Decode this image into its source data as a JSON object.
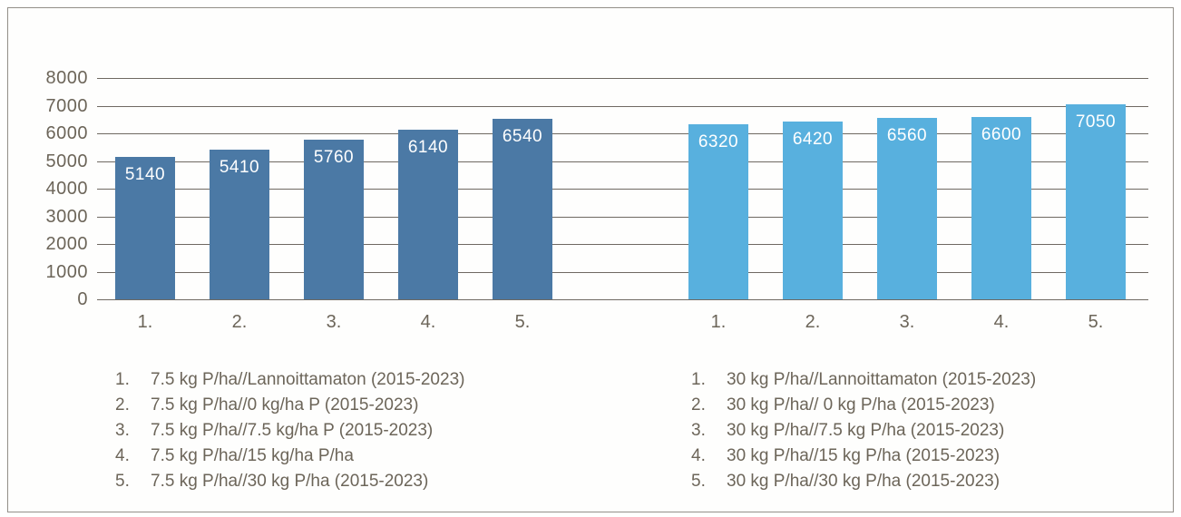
{
  "chart_data": {
    "type": "bar",
    "title": "",
    "xlabel": "",
    "ylabel": "",
    "ylim": [
      0,
      8000
    ],
    "yticks": [
      8000,
      7000,
      6000,
      5000,
      4000,
      3000,
      2000,
      1000,
      0
    ],
    "grid": "horizontal",
    "legend_position": "bottom",
    "groups": [
      {
        "name": "7.5 kg P/ha series",
        "color": "#4b79a5",
        "categories": [
          "1.",
          "2.",
          "3.",
          "4.",
          "5."
        ],
        "values": [
          5140,
          5410,
          5760,
          6140,
          6540
        ]
      },
      {
        "name": "30 kg P/ha series",
        "color": "#58b0de",
        "categories": [
          "1.",
          "2.",
          "3.",
          "4.",
          "5."
        ],
        "values": [
          6320,
          6420,
          6560,
          6600,
          7050
        ]
      }
    ],
    "legend_left": [
      {
        "num": "1.",
        "label": "7.5 kg P/ha//Lannoittamaton (2015-2023)"
      },
      {
        "num": "2.",
        "label": "7.5 kg P/ha//0 kg/ha P (2015-2023)"
      },
      {
        "num": "3.",
        "label": "7.5 kg P/ha//7.5 kg/ha P (2015-2023)"
      },
      {
        "num": "4.",
        "label": "7.5 kg P/ha//15 kg/ha P/ha"
      },
      {
        "num": "5.",
        "label": "7.5 kg P/ha//30 kg P/ha (2015-2023)"
      }
    ],
    "legend_right": [
      {
        "num": "1.",
        "label": "30 kg P/ha//Lannoittamaton (2015-2023)"
      },
      {
        "num": "2.",
        "label": "30 kg P/ha// 0 kg P/ha (2015-2023)"
      },
      {
        "num": "3.",
        "label": "30 kg P/ha//7.5 kg P/ha (2015-2023)"
      },
      {
        "num": "4.",
        "label": "30 kg P/ha//15 kg P/ha (2015-2023)"
      },
      {
        "num": "5.",
        "label": "30 kg P/ha//30 kg P/ha (2015-2023)"
      }
    ]
  },
  "colors": {
    "dark_blue_bar": "#4b79a5",
    "light_blue_bar": "#58b0de",
    "text": "#6c6559",
    "gridline": "#6f6962",
    "frame_border": "#94908a",
    "bar_value_text": "#ffffff"
  }
}
